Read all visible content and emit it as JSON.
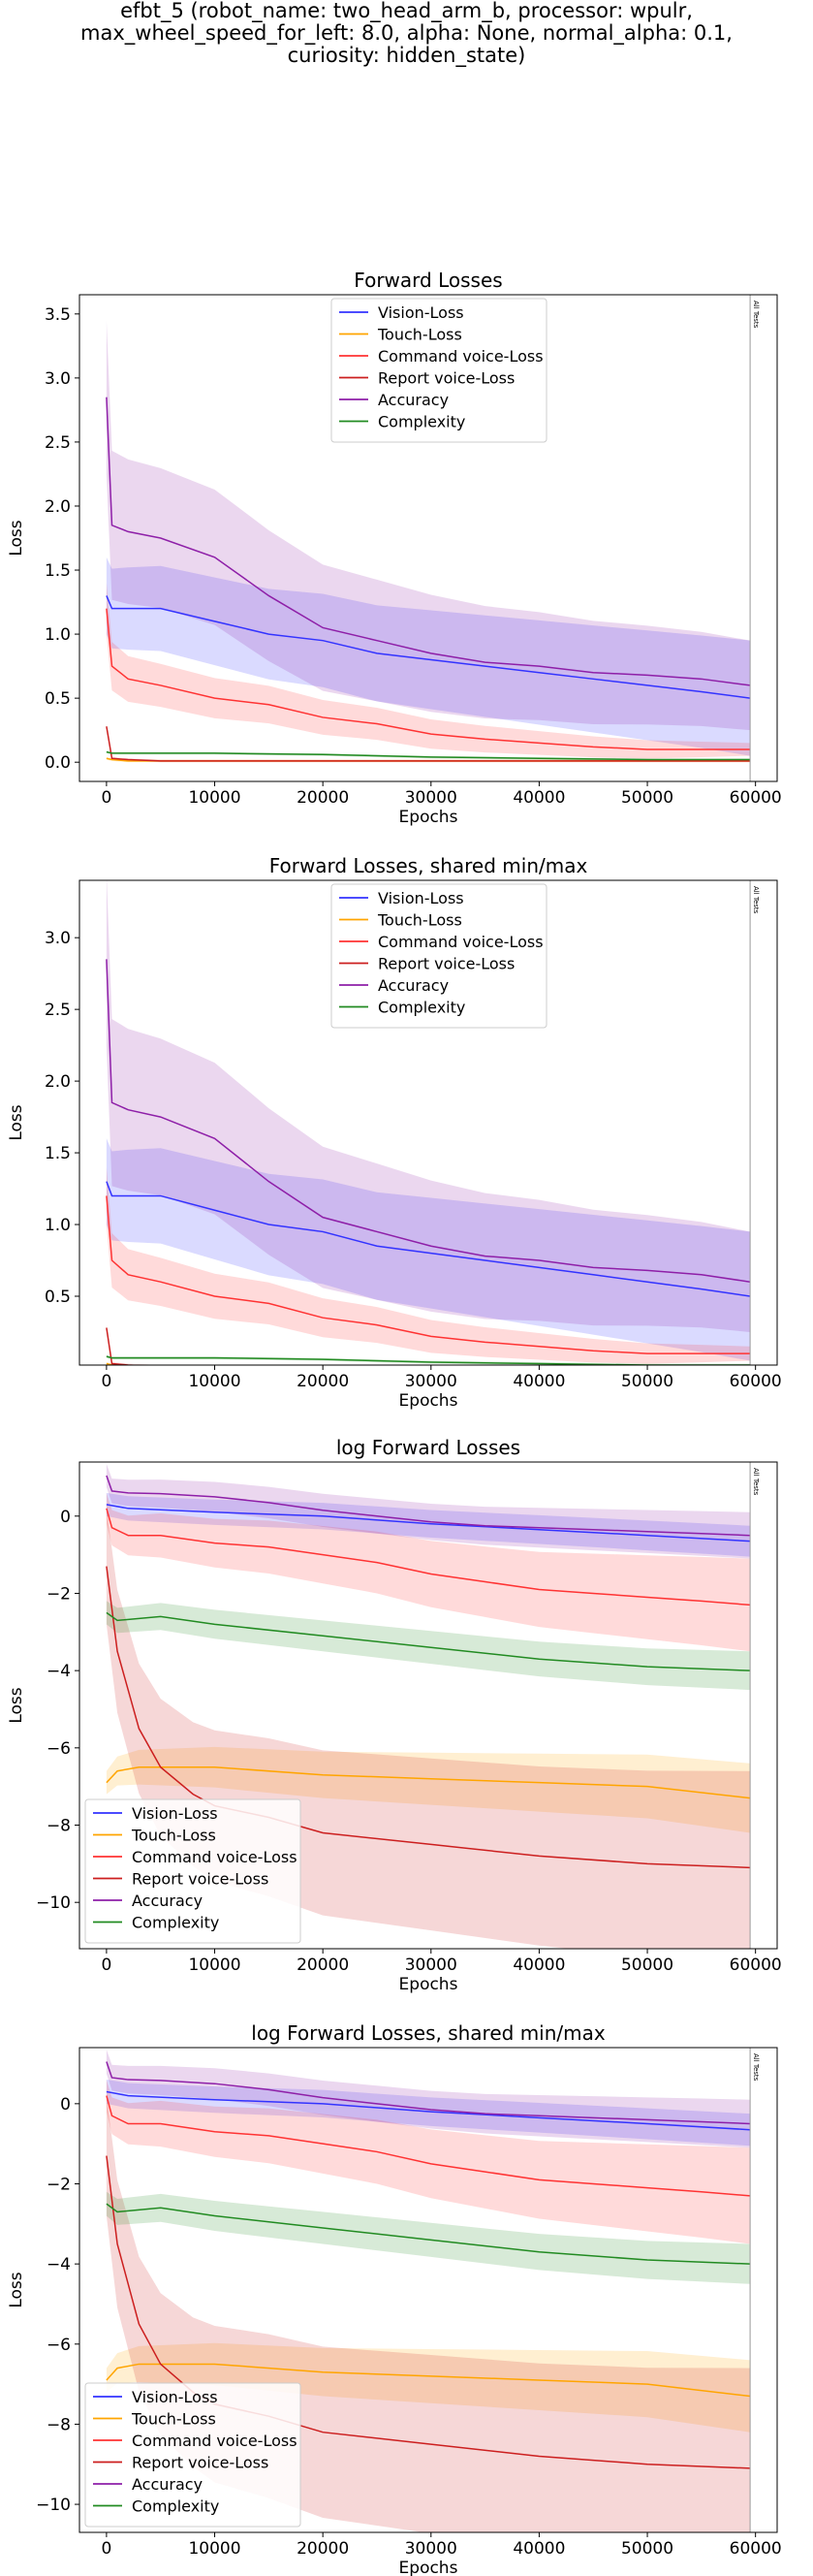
{
  "figure": {
    "title_lines": [
      "efbt_5 (robot_name: two_head_arm_b, processor: wpulr,",
      "max_wheel_speed_for_left: 8.0, alpha: None, normal_alpha: 0.1,",
      "curiosity: hidden_state)"
    ]
  },
  "colors": {
    "Vision-Loss": "#3333ff",
    "Touch-Loss": "#ffa500",
    "Command voice-Loss": "#ff3333",
    "Report voice-Loss": "#cc1f1f",
    "Accuracy": "#8e1fa8",
    "Complexity": "#228b22"
  },
  "chart_data": [
    {
      "type": "line",
      "title": "Forward Losses",
      "xlabel": "Epochs",
      "ylabel": "Loss",
      "xlim": [
        -2500,
        62000
      ],
      "ylim": [
        -0.15,
        3.65
      ],
      "xticks": [
        0,
        10000,
        20000,
        30000,
        40000,
        50000,
        60000
      ],
      "yticks": [
        0.0,
        0.5,
        1.0,
        1.5,
        2.0,
        2.5,
        3.0,
        3.5
      ],
      "ytick_labels": [
        "0.0",
        "0.5",
        "1.0",
        "1.5",
        "2.0",
        "2.5",
        "3.0",
        "3.5"
      ],
      "legend_position": "top-center",
      "vline": {
        "x": 59500,
        "label": "All Tests"
      },
      "grid": false,
      "series": [
        {
          "name": "Vision-Loss",
          "x": [
            0,
            500,
            2000,
            5000,
            10000,
            15000,
            20000,
            25000,
            30000,
            35000,
            40000,
            45000,
            50000,
            55000,
            59500
          ],
          "values": [
            1.3,
            1.2,
            1.2,
            1.2,
            1.1,
            1.0,
            0.95,
            0.85,
            0.8,
            0.75,
            0.7,
            0.65,
            0.6,
            0.55,
            0.5
          ],
          "band": [
            0.3,
            0.45
          ]
        },
        {
          "name": "Touch-Loss",
          "x": [
            0,
            500,
            2000,
            10000,
            30000,
            59500
          ],
          "values": [
            0.03,
            0.02,
            0.01,
            0.01,
            0.01,
            0.01
          ],
          "band": [
            0.01,
            0.01
          ]
        },
        {
          "name": "Command voice-Loss",
          "x": [
            0,
            500,
            2000,
            5000,
            10000,
            15000,
            20000,
            25000,
            30000,
            35000,
            40000,
            45000,
            50000,
            55000,
            59500
          ],
          "values": [
            1.2,
            0.75,
            0.65,
            0.6,
            0.5,
            0.45,
            0.35,
            0.3,
            0.22,
            0.18,
            0.15,
            0.12,
            0.1,
            0.1,
            0.1
          ],
          "band": [
            0.2,
            0.05
          ]
        },
        {
          "name": "Report voice-Loss",
          "x": [
            0,
            500,
            2000,
            5000,
            10000,
            20000,
            59500
          ],
          "values": [
            0.28,
            0.03,
            0.02,
            0.01,
            0.01,
            0.01,
            0.01
          ],
          "band": [
            0.01,
            0.01
          ]
        },
        {
          "name": "Accuracy",
          "x": [
            0,
            500,
            2000,
            5000,
            10000,
            15000,
            20000,
            25000,
            30000,
            35000,
            40000,
            45000,
            50000,
            55000,
            59500
          ],
          "values": [
            2.85,
            1.85,
            1.8,
            1.75,
            1.6,
            1.3,
            1.05,
            0.95,
            0.85,
            0.78,
            0.75,
            0.7,
            0.68,
            0.65,
            0.6
          ],
          "band": [
            0.6,
            0.35
          ]
        },
        {
          "name": "Complexity",
          "x": [
            0,
            500,
            2000,
            10000,
            20000,
            30000,
            40000,
            50000,
            59500
          ],
          "values": [
            0.08,
            0.07,
            0.07,
            0.07,
            0.06,
            0.04,
            0.03,
            0.02,
            0.02
          ],
          "band": [
            0.01,
            0.01
          ]
        }
      ]
    },
    {
      "type": "line",
      "title": "Forward Losses, shared min/max",
      "xlabel": "Epochs",
      "ylabel": "Loss",
      "xlim": [
        -2500,
        62000
      ],
      "ylim": [
        0.02,
        3.4
      ],
      "xticks": [
        0,
        10000,
        20000,
        30000,
        40000,
        50000,
        60000
      ],
      "yticks": [
        0.5,
        1.0,
        1.5,
        2.0,
        2.5,
        3.0
      ],
      "ytick_labels": [
        "0.5",
        "1.0",
        "1.5",
        "2.0",
        "2.5",
        "3.0"
      ],
      "legend_position": "top-center",
      "vline": {
        "x": 59500,
        "label": "All Tests"
      },
      "grid": false,
      "series": [
        {
          "name": "Vision-Loss",
          "x": [
            0,
            500,
            2000,
            5000,
            10000,
            15000,
            20000,
            25000,
            30000,
            35000,
            40000,
            45000,
            50000,
            55000,
            59500
          ],
          "values": [
            1.3,
            1.2,
            1.2,
            1.2,
            1.1,
            1.0,
            0.95,
            0.85,
            0.8,
            0.75,
            0.7,
            0.65,
            0.6,
            0.55,
            0.5
          ],
          "band": [
            0.3,
            0.45
          ]
        },
        {
          "name": "Touch-Loss",
          "x": [
            0,
            500,
            2000,
            10000,
            30000,
            59500
          ],
          "values": [
            0.03,
            0.02,
            0.01,
            0.01,
            0.01,
            0.01
          ],
          "band": [
            0.01,
            0.01
          ]
        },
        {
          "name": "Command voice-Loss",
          "x": [
            0,
            500,
            2000,
            5000,
            10000,
            15000,
            20000,
            25000,
            30000,
            35000,
            40000,
            45000,
            50000,
            55000,
            59500
          ],
          "values": [
            1.2,
            0.75,
            0.65,
            0.6,
            0.5,
            0.45,
            0.35,
            0.3,
            0.22,
            0.18,
            0.15,
            0.12,
            0.1,
            0.1,
            0.1
          ],
          "band": [
            0.2,
            0.05
          ]
        },
        {
          "name": "Report voice-Loss",
          "x": [
            0,
            500,
            2000,
            5000,
            10000,
            20000,
            59500
          ],
          "values": [
            0.28,
            0.03,
            0.02,
            0.01,
            0.01,
            0.01,
            0.01
          ],
          "band": [
            0.01,
            0.01
          ]
        },
        {
          "name": "Accuracy",
          "x": [
            0,
            500,
            2000,
            5000,
            10000,
            15000,
            20000,
            25000,
            30000,
            35000,
            40000,
            45000,
            50000,
            55000,
            59500
          ],
          "values": [
            2.85,
            1.85,
            1.8,
            1.75,
            1.6,
            1.3,
            1.05,
            0.95,
            0.85,
            0.78,
            0.75,
            0.7,
            0.68,
            0.65,
            0.6
          ],
          "band": [
            0.6,
            0.35
          ]
        },
        {
          "name": "Complexity",
          "x": [
            0,
            500,
            2000,
            10000,
            20000,
            30000,
            40000,
            50000,
            59500
          ],
          "values": [
            0.08,
            0.07,
            0.07,
            0.07,
            0.06,
            0.04,
            0.03,
            0.02,
            0.02
          ],
          "band": [
            0.01,
            0.01
          ]
        }
      ]
    },
    {
      "type": "line",
      "title": "log Forward Losses",
      "xlabel": "Epochs",
      "ylabel": "Loss",
      "xlim": [
        -2500,
        62000
      ],
      "ylim": [
        -11.2,
        1.4
      ],
      "xticks": [
        0,
        10000,
        20000,
        30000,
        40000,
        50000,
        60000
      ],
      "yticks": [
        0,
        -2,
        -4,
        -6,
        -8,
        -10
      ],
      "ytick_labels": [
        "0",
        "−2",
        "−4",
        "−6",
        "−8",
        "−10"
      ],
      "legend_position": "bottom-left",
      "vline": {
        "x": 59500,
        "label": "All Tests"
      },
      "grid": false,
      "series": [
        {
          "name": "Vision-Loss",
          "x": [
            0,
            2000,
            10000,
            20000,
            30000,
            40000,
            50000,
            59500
          ],
          "values": [
            0.3,
            0.2,
            0.1,
            0.0,
            -0.2,
            -0.35,
            -0.5,
            -0.65
          ],
          "band": [
            0.3,
            0.4
          ]
        },
        {
          "name": "Touch-Loss",
          "x": [
            0,
            1000,
            3000,
            10000,
            20000,
            30000,
            40000,
            50000,
            59500
          ],
          "values": [
            -6.9,
            -6.6,
            -6.5,
            -6.5,
            -6.7,
            -6.8,
            -6.9,
            -7.0,
            -7.3
          ],
          "band": [
            0.3,
            0.9
          ]
        },
        {
          "name": "Command voice-Loss",
          "x": [
            0,
            500,
            2000,
            5000,
            10000,
            15000,
            20000,
            25000,
            30000,
            35000,
            40000,
            45000,
            50000,
            55000,
            59500
          ],
          "values": [
            0.2,
            -0.3,
            -0.5,
            -0.5,
            -0.7,
            -0.8,
            -1.0,
            -1.2,
            -1.5,
            -1.7,
            -1.9,
            -2.0,
            -2.1,
            -2.2,
            -2.3
          ],
          "band": [
            0.4,
            1.2
          ]
        },
        {
          "name": "Report voice-Loss",
          "x": [
            0,
            1000,
            3000,
            5000,
            8000,
            10000,
            15000,
            20000,
            30000,
            40000,
            50000,
            59500
          ],
          "values": [
            -1.3,
            -3.5,
            -5.5,
            -6.5,
            -7.2,
            -7.5,
            -7.8,
            -8.2,
            -8.5,
            -8.8,
            -9.0,
            -9.1
          ],
          "band": [
            1.5,
            2.5
          ]
        },
        {
          "name": "Accuracy",
          "x": [
            0,
            500,
            2000,
            5000,
            10000,
            15000,
            20000,
            25000,
            30000,
            35000,
            40000,
            45000,
            50000,
            55000,
            59500
          ],
          "values": [
            1.05,
            0.65,
            0.6,
            0.58,
            0.5,
            0.35,
            0.15,
            0.0,
            -0.15,
            -0.25,
            -0.3,
            -0.35,
            -0.4,
            -0.45,
            -0.5
          ],
          "band": [
            0.3,
            0.6
          ]
        },
        {
          "name": "Complexity",
          "x": [
            0,
            1000,
            5000,
            10000,
            20000,
            30000,
            40000,
            50000,
            59500
          ],
          "values": [
            -2.5,
            -2.7,
            -2.6,
            -2.8,
            -3.1,
            -3.4,
            -3.7,
            -3.9,
            -4.0
          ],
          "band": [
            0.3,
            0.5
          ]
        }
      ]
    },
    {
      "type": "line",
      "title": "log Forward Losses, shared min/max",
      "xlabel": "Epochs",
      "ylabel": "Loss",
      "xlim": [
        -2500,
        62000
      ],
      "ylim": [
        -10.7,
        1.4
      ],
      "xticks": [
        0,
        10000,
        20000,
        30000,
        40000,
        50000,
        60000
      ],
      "yticks": [
        0,
        -2,
        -4,
        -6,
        -8,
        -10
      ],
      "ytick_labels": [
        "0",
        "−2",
        "−4",
        "−6",
        "−8",
        "−10"
      ],
      "legend_position": "bottom-left",
      "vline": {
        "x": 59500,
        "label": "All Tests"
      },
      "grid": false,
      "series": [
        {
          "name": "Vision-Loss",
          "x": [
            0,
            2000,
            10000,
            20000,
            30000,
            40000,
            50000,
            59500
          ],
          "values": [
            0.3,
            0.2,
            0.1,
            0.0,
            -0.2,
            -0.35,
            -0.5,
            -0.65
          ],
          "band": [
            0.3,
            0.4
          ]
        },
        {
          "name": "Touch-Loss",
          "x": [
            0,
            1000,
            3000,
            10000,
            20000,
            30000,
            40000,
            50000,
            59500
          ],
          "values": [
            -6.9,
            -6.6,
            -6.5,
            -6.5,
            -6.7,
            -6.8,
            -6.9,
            -7.0,
            -7.3
          ],
          "band": [
            0.3,
            0.9
          ]
        },
        {
          "name": "Command voice-Loss",
          "x": [
            0,
            500,
            2000,
            5000,
            10000,
            15000,
            20000,
            25000,
            30000,
            35000,
            40000,
            45000,
            50000,
            55000,
            59500
          ],
          "values": [
            0.2,
            -0.3,
            -0.5,
            -0.5,
            -0.7,
            -0.8,
            -1.0,
            -1.2,
            -1.5,
            -1.7,
            -1.9,
            -2.0,
            -2.1,
            -2.2,
            -2.3
          ],
          "band": [
            0.4,
            1.2
          ]
        },
        {
          "name": "Report voice-Loss",
          "x": [
            0,
            1000,
            3000,
            5000,
            8000,
            10000,
            15000,
            20000,
            30000,
            40000,
            50000,
            59500
          ],
          "values": [
            -1.3,
            -3.5,
            -5.5,
            -6.5,
            -7.2,
            -7.5,
            -7.8,
            -8.2,
            -8.5,
            -8.8,
            -9.0,
            -9.1
          ],
          "band": [
            1.5,
            2.5
          ]
        },
        {
          "name": "Accuracy",
          "x": [
            0,
            500,
            2000,
            5000,
            10000,
            15000,
            20000,
            25000,
            30000,
            35000,
            40000,
            45000,
            50000,
            55000,
            59500
          ],
          "values": [
            1.05,
            0.65,
            0.6,
            0.58,
            0.5,
            0.35,
            0.15,
            0.0,
            -0.15,
            -0.25,
            -0.3,
            -0.35,
            -0.4,
            -0.45,
            -0.5
          ],
          "band": [
            0.3,
            0.6
          ]
        },
        {
          "name": "Complexity",
          "x": [
            0,
            1000,
            5000,
            10000,
            20000,
            30000,
            40000,
            50000,
            59500
          ],
          "values": [
            -2.5,
            -2.7,
            -2.6,
            -2.8,
            -3.1,
            -3.4,
            -3.7,
            -3.9,
            -4.0
          ],
          "band": [
            0.3,
            0.5
          ]
        }
      ]
    }
  ]
}
